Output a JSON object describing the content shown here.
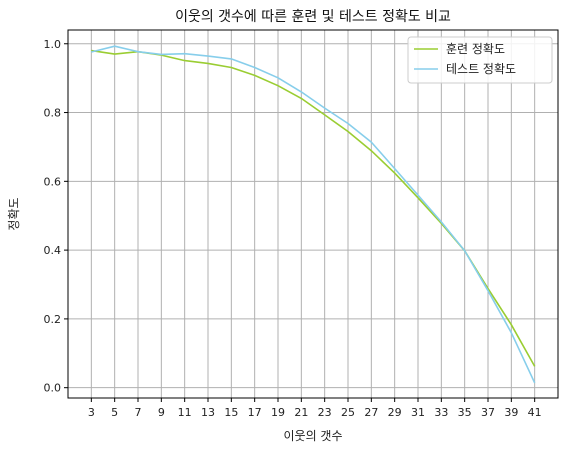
{
  "chart_data": {
    "type": "line",
    "title": "이웃의 갯수에 따른 훈련 및 테스트 정확도 비교",
    "xlabel": "이웃의 갯수",
    "ylabel": "정확도",
    "x": [
      3,
      5,
      7,
      9,
      11,
      13,
      15,
      17,
      19,
      21,
      23,
      25,
      27,
      29,
      31,
      33,
      35,
      37,
      39,
      41
    ],
    "xlim": [
      1,
      43
    ],
    "ylim": [
      -0.03,
      1.04
    ],
    "yticks": [
      0.0,
      0.2,
      0.4,
      0.6,
      0.8,
      1.0
    ],
    "ytick_labels": [
      "0.0",
      "0.2",
      "0.4",
      "0.6",
      "0.8",
      "1.0"
    ],
    "grid": true,
    "legend_position": "top-right",
    "series": [
      {
        "name": "훈련 정확도",
        "color": "#9acd32",
        "values": [
          0.98,
          0.97,
          0.977,
          0.967,
          0.951,
          0.943,
          0.931,
          0.908,
          0.878,
          0.841,
          0.793,
          0.745,
          0.689,
          0.624,
          0.552,
          0.478,
          0.398,
          0.288,
          0.183,
          0.062
        ]
      },
      {
        "name": "테스트 정확도",
        "color": "#87ceeb",
        "values": [
          0.976,
          0.993,
          0.977,
          0.969,
          0.971,
          0.964,
          0.956,
          0.931,
          0.901,
          0.86,
          0.813,
          0.768,
          0.714,
          0.637,
          0.56,
          0.482,
          0.398,
          0.282,
          0.16,
          0.014
        ]
      }
    ]
  }
}
